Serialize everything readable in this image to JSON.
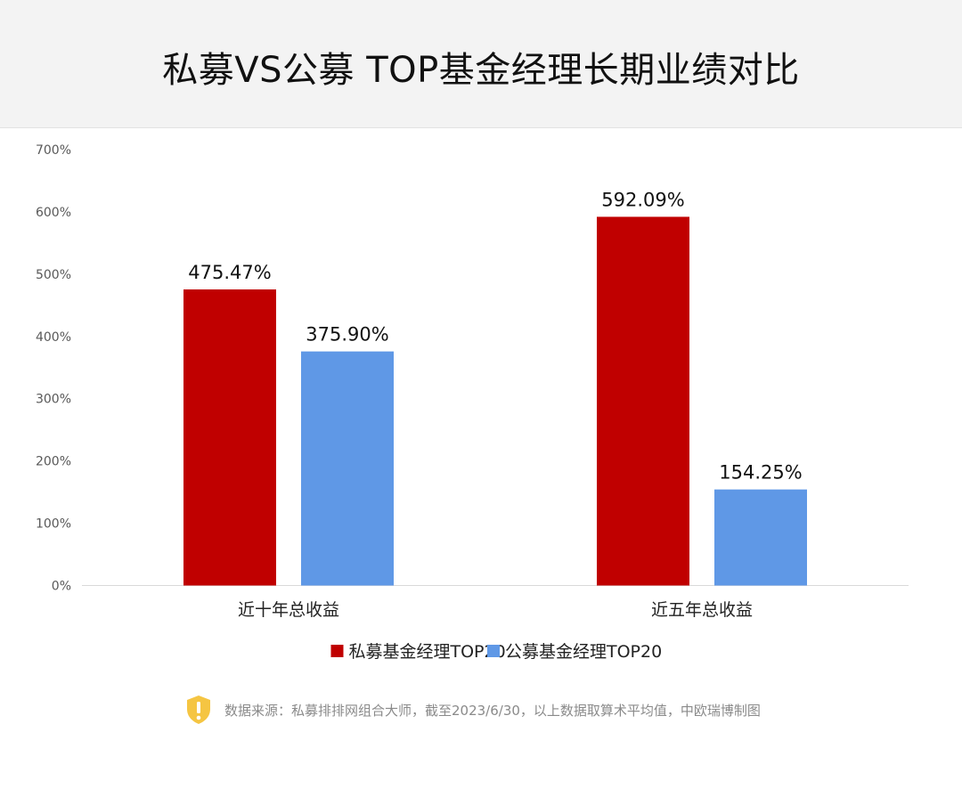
{
  "header": {
    "title": "私募VS公募 TOP基金经理长期业绩对比"
  },
  "footer": {
    "source_text": "数据来源：私募排排网组合大师，截至2023/6/30，以上数据取算术平均值，中欧瑞博制图",
    "source_icon": "warning-shield-icon"
  },
  "colors": {
    "private": "#c00000",
    "public": "#5f98e6",
    "axis_text": "#595959",
    "grid": "#d9d9d9",
    "icon": "#f5c542"
  },
  "chart_data": {
    "type": "bar",
    "title": "",
    "xlabel": "",
    "ylabel": "",
    "categories": [
      "近十年总收益",
      "近五年总收益"
    ],
    "series": [
      {
        "name": "私募基金经理TOP20",
        "values": [
          475.47,
          592.09
        ],
        "labels": [
          "475.47%",
          "592.09%"
        ]
      },
      {
        "name": "公募基金经理TOP20",
        "values": [
          375.9,
          154.25
        ],
        "labels": [
          "375.90%",
          "154.25%"
        ]
      }
    ],
    "ylim": [
      0,
      700
    ],
    "yticks": [
      "0%",
      "100%",
      "200%",
      "300%",
      "400%",
      "500%",
      "600%",
      "700%"
    ],
    "grid": false,
    "legend": "bottom"
  }
}
